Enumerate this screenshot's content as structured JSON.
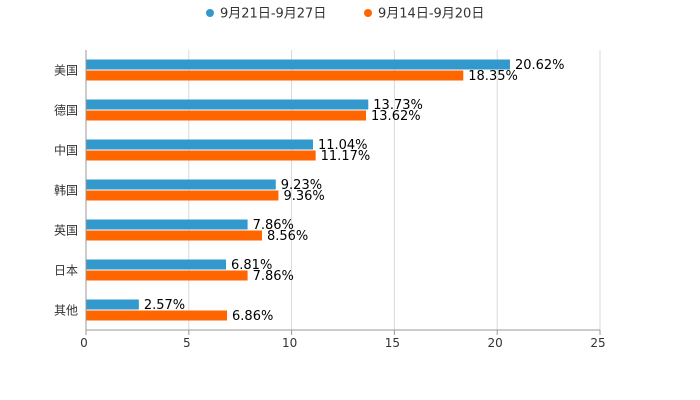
{
  "chart_data": {
    "type": "bar",
    "orientation": "horizontal",
    "categories": [
      "美国",
      "德国",
      "中国",
      "韩国",
      "英国",
      "日本",
      "其他"
    ],
    "series": [
      {
        "name": "9月21日-9月27日",
        "color": "#3399cc",
        "values": [
          20.62,
          13.73,
          11.04,
          9.23,
          7.86,
          6.81,
          2.57
        ],
        "labels": [
          "20.62%",
          "13.73%",
          "11.04%",
          "9.23%",
          "7.86%",
          "6.81%",
          "2.57%"
        ]
      },
      {
        "name": "9月14日-9月20日",
        "color": "#ff6600",
        "values": [
          18.35,
          13.62,
          11.17,
          9.36,
          8.56,
          7.86,
          6.86
        ],
        "labels": [
          "18.35%",
          "13.62%",
          "11.17%",
          "9.36%",
          "8.56%",
          "7.86%",
          "6.86%"
        ]
      }
    ],
    "xlim": [
      0,
      25
    ],
    "x_ticks": [
      "0",
      "5",
      "10",
      "15",
      "20",
      "25"
    ],
    "x_tick_values": [
      0,
      5,
      10,
      15,
      20,
      25
    ],
    "grid": true,
    "legend_position": "top-center",
    "title": "",
    "xlabel": "",
    "ylabel": ""
  }
}
